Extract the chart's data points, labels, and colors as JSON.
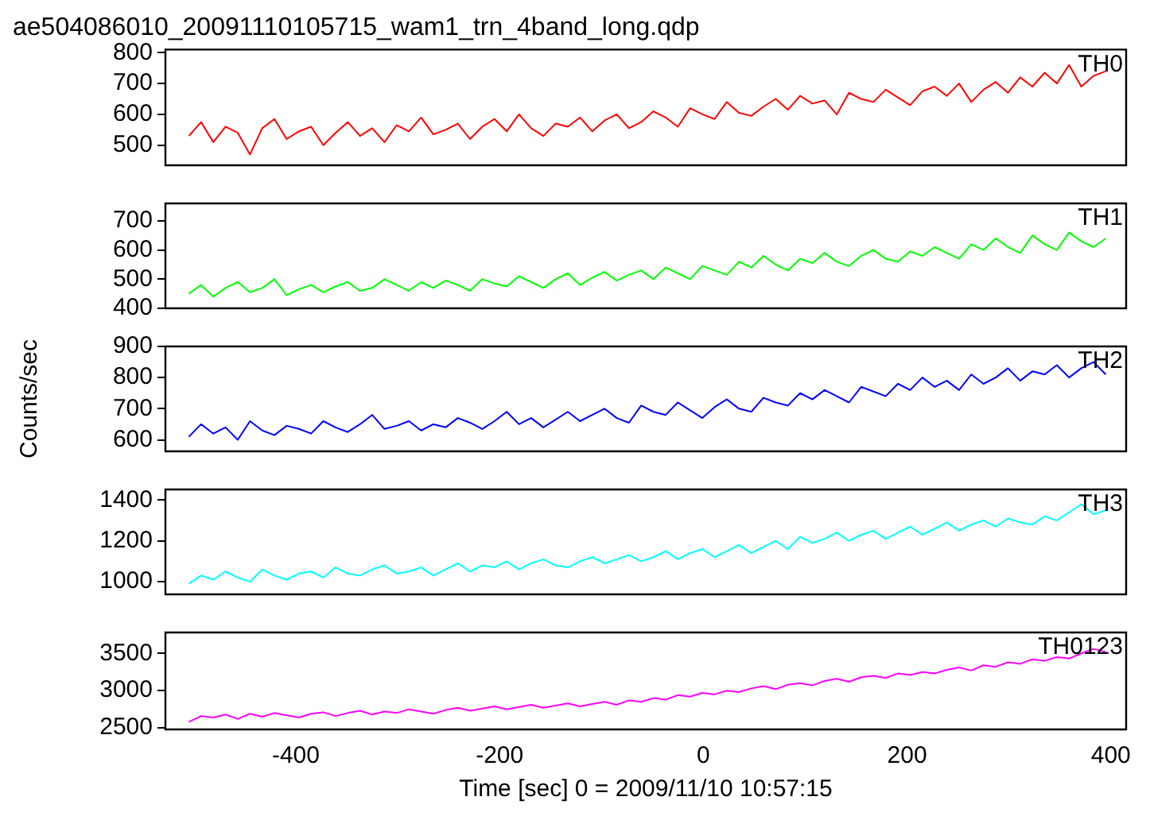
{
  "chart_data": [
    {
      "type": "line",
      "title": "ae504086010_20091110105715_wam1_trn_4band_long.qdp",
      "marker": "none",
      "tick_labels": "y",
      "xlim": [
        -528,
        415
      ],
      "xticks": [
        -400,
        -200,
        0,
        200,
        400
      ],
      "ylim": [
        435,
        810
      ],
      "yticks": [
        500,
        600,
        700,
        800
      ],
      "x": [
        -505,
        -493,
        -481,
        -469,
        -457,
        -445,
        -433,
        -421,
        -409,
        -397,
        -385,
        -373,
        -361,
        -349,
        -337,
        -325,
        -313,
        -301,
        -289,
        -277,
        -265,
        -253,
        -241,
        -229,
        -217,
        -205,
        -193,
        -181,
        -169,
        -157,
        -145,
        -133,
        -121,
        -109,
        -97,
        -85,
        -73,
        -61,
        -49,
        -37,
        -25,
        -13,
        -1,
        11,
        23,
        35,
        47,
        59,
        71,
        83,
        95,
        107,
        119,
        131,
        143,
        155,
        167,
        179,
        191,
        203,
        215,
        227,
        239,
        251,
        263,
        275,
        287,
        299,
        311,
        323,
        335,
        347,
        359,
        371,
        383,
        395
      ],
      "series": [
        {
          "name": "TH0",
          "color": "#ff0000",
          "values": [
            530,
            575,
            510,
            560,
            540,
            470,
            555,
            585,
            520,
            545,
            560,
            500,
            540,
            575,
            530,
            555,
            510,
            565,
            545,
            590,
            535,
            550,
            570,
            520,
            560,
            585,
            545,
            600,
            555,
            530,
            570,
            560,
            590,
            545,
            580,
            600,
            555,
            575,
            610,
            590,
            560,
            620,
            600,
            585,
            640,
            605,
            595,
            625,
            650,
            615,
            660,
            635,
            645,
            600,
            670,
            650,
            640,
            680,
            655,
            630,
            675,
            690,
            660,
            700,
            640,
            680,
            705,
            670,
            720,
            690,
            735,
            700,
            760,
            690,
            725,
            740
          ]
        }
      ]
    },
    {
      "type": "line",
      "marker": "none",
      "tick_labels": "y",
      "xlim": [
        -528,
        415
      ],
      "xticks": [
        -400,
        -200,
        0,
        200,
        400
      ],
      "ylim": [
        400,
        760
      ],
      "yticks": [
        400,
        500,
        600,
        700
      ],
      "x": [
        -505,
        -493,
        -481,
        -469,
        -457,
        -445,
        -433,
        -421,
        -409,
        -397,
        -385,
        -373,
        -361,
        -349,
        -337,
        -325,
        -313,
        -301,
        -289,
        -277,
        -265,
        -253,
        -241,
        -229,
        -217,
        -205,
        -193,
        -181,
        -169,
        -157,
        -145,
        -133,
        -121,
        -109,
        -97,
        -85,
        -73,
        -61,
        -49,
        -37,
        -25,
        -13,
        -1,
        11,
        23,
        35,
        47,
        59,
        71,
        83,
        95,
        107,
        119,
        131,
        143,
        155,
        167,
        179,
        191,
        203,
        215,
        227,
        239,
        251,
        263,
        275,
        287,
        299,
        311,
        323,
        335,
        347,
        359,
        371,
        383,
        395
      ],
      "series": [
        {
          "name": "TH1",
          "color": "#00ff00",
          "values": [
            450,
            480,
            440,
            470,
            490,
            455,
            470,
            500,
            445,
            465,
            480,
            455,
            475,
            490,
            460,
            470,
            500,
            480,
            460,
            490,
            470,
            495,
            480,
            460,
            500,
            485,
            475,
            510,
            490,
            470,
            500,
            520,
            480,
            505,
            525,
            495,
            515,
            530,
            500,
            540,
            520,
            500,
            545,
            530,
            515,
            560,
            540,
            580,
            550,
            530,
            570,
            555,
            590,
            560,
            545,
            580,
            600,
            570,
            560,
            595,
            580,
            610,
            590,
            570,
            620,
            600,
            640,
            610,
            590,
            650,
            620,
            600,
            660,
            630,
            610,
            640
          ]
        }
      ]
    },
    {
      "type": "line",
      "ylabel": "Counts/sec",
      "marker": "none",
      "tick_labels": "y",
      "xlim": [
        -528,
        415
      ],
      "xticks": [
        -400,
        -200,
        0,
        200,
        400
      ],
      "ylim": [
        563,
        900
      ],
      "yticks": [
        600,
        700,
        800,
        900
      ],
      "x": [
        -505,
        -493,
        -481,
        -469,
        -457,
        -445,
        -433,
        -421,
        -409,
        -397,
        -385,
        -373,
        -361,
        -349,
        -337,
        -325,
        -313,
        -301,
        -289,
        -277,
        -265,
        -253,
        -241,
        -229,
        -217,
        -205,
        -193,
        -181,
        -169,
        -157,
        -145,
        -133,
        -121,
        -109,
        -97,
        -85,
        -73,
        -61,
        -49,
        -37,
        -25,
        -13,
        -1,
        11,
        23,
        35,
        47,
        59,
        71,
        83,
        95,
        107,
        119,
        131,
        143,
        155,
        167,
        179,
        191,
        203,
        215,
        227,
        239,
        251,
        263,
        275,
        287,
        299,
        311,
        323,
        335,
        347,
        359,
        371,
        383,
        395
      ],
      "series": [
        {
          "name": "TH2",
          "color": "#0000ff",
          "values": [
            610,
            650,
            620,
            640,
            600,
            660,
            630,
            615,
            645,
            635,
            620,
            660,
            640,
            625,
            650,
            680,
            635,
            645,
            660,
            630,
            650,
            640,
            670,
            655,
            635,
            660,
            690,
            650,
            670,
            640,
            665,
            690,
            660,
            680,
            700,
            670,
            655,
            710,
            690,
            680,
            720,
            695,
            670,
            705,
            730,
            700,
            690,
            735,
            720,
            710,
            750,
            730,
            760,
            740,
            720,
            770,
            755,
            740,
            780,
            760,
            800,
            770,
            790,
            760,
            810,
            780,
            800,
            830,
            790,
            820,
            810,
            840,
            800,
            830,
            850,
            810
          ]
        }
      ]
    },
    {
      "type": "line",
      "marker": "none",
      "tick_labels": "y",
      "xlim": [
        -528,
        415
      ],
      "xticks": [
        -400,
        -200,
        0,
        200,
        400
      ],
      "ylim": [
        938,
        1452
      ],
      "yticks": [
        1000,
        1200,
        1400
      ],
      "x": [
        -505,
        -493,
        -481,
        -469,
        -457,
        -445,
        -433,
        -421,
        -409,
        -397,
        -385,
        -373,
        -361,
        -349,
        -337,
        -325,
        -313,
        -301,
        -289,
        -277,
        -265,
        -253,
        -241,
        -229,
        -217,
        -205,
        -193,
        -181,
        -169,
        -157,
        -145,
        -133,
        -121,
        -109,
        -97,
        -85,
        -73,
        -61,
        -49,
        -37,
        -25,
        -13,
        -1,
        11,
        23,
        35,
        47,
        59,
        71,
        83,
        95,
        107,
        119,
        131,
        143,
        155,
        167,
        179,
        191,
        203,
        215,
        227,
        239,
        251,
        263,
        275,
        287,
        299,
        311,
        323,
        335,
        347,
        359,
        371,
        383,
        395
      ],
      "series": [
        {
          "name": "TH3",
          "color": "#00ffff",
          "values": [
            990,
            1030,
            1010,
            1050,
            1020,
            1000,
            1060,
            1030,
            1010,
            1040,
            1050,
            1020,
            1070,
            1040,
            1030,
            1060,
            1080,
            1040,
            1050,
            1070,
            1030,
            1060,
            1090,
            1050,
            1080,
            1070,
            1100,
            1060,
            1090,
            1110,
            1080,
            1070,
            1100,
            1120,
            1090,
            1110,
            1130,
            1100,
            1120,
            1150,
            1110,
            1140,
            1160,
            1120,
            1150,
            1180,
            1140,
            1170,
            1200,
            1160,
            1220,
            1190,
            1210,
            1240,
            1200,
            1230,
            1250,
            1210,
            1240,
            1270,
            1230,
            1260,
            1290,
            1250,
            1280,
            1300,
            1270,
            1310,
            1290,
            1280,
            1320,
            1300,
            1340,
            1380,
            1330,
            1350
          ]
        }
      ]
    },
    {
      "type": "line",
      "xlabel": "Time [sec] 0 = 2009/11/10 10:57:15",
      "marker": "none",
      "xlim": [
        -528,
        415
      ],
      "xticks": [
        -400,
        -200,
        0,
        200,
        400
      ],
      "ylim": [
        2480,
        3780
      ],
      "yticks": [
        2500,
        3000,
        3500
      ],
      "x": [
        -505,
        -493,
        -481,
        -469,
        -457,
        -445,
        -433,
        -421,
        -409,
        -397,
        -385,
        -373,
        -361,
        -349,
        -337,
        -325,
        -313,
        -301,
        -289,
        -277,
        -265,
        -253,
        -241,
        -229,
        -217,
        -205,
        -193,
        -181,
        -169,
        -157,
        -145,
        -133,
        -121,
        -109,
        -97,
        -85,
        -73,
        -61,
        -49,
        -37,
        -25,
        -13,
        -1,
        11,
        23,
        35,
        47,
        59,
        71,
        83,
        95,
        107,
        119,
        131,
        143,
        155,
        167,
        179,
        191,
        203,
        215,
        227,
        239,
        251,
        263,
        275,
        287,
        299,
        311,
        323,
        335,
        347,
        359,
        371,
        383,
        395
      ],
      "series": [
        {
          "name": "TH0123",
          "color": "#ff00ff",
          "values": [
            2580,
            2660,
            2640,
            2680,
            2620,
            2690,
            2650,
            2700,
            2670,
            2640,
            2690,
            2710,
            2660,
            2700,
            2730,
            2680,
            2720,
            2700,
            2750,
            2720,
            2690,
            2740,
            2770,
            2730,
            2760,
            2790,
            2750,
            2780,
            2810,
            2770,
            2800,
            2830,
            2790,
            2820,
            2850,
            2810,
            2870,
            2850,
            2900,
            2880,
            2940,
            2920,
            2970,
            2950,
            3000,
            2980,
            3030,
            3060,
            3020,
            3080,
            3100,
            3070,
            3130,
            3160,
            3120,
            3180,
            3200,
            3170,
            3230,
            3210,
            3250,
            3230,
            3280,
            3310,
            3270,
            3340,
            3320,
            3380,
            3360,
            3420,
            3400,
            3450,
            3430,
            3500,
            3560,
            3520
          ]
        }
      ]
    }
  ]
}
